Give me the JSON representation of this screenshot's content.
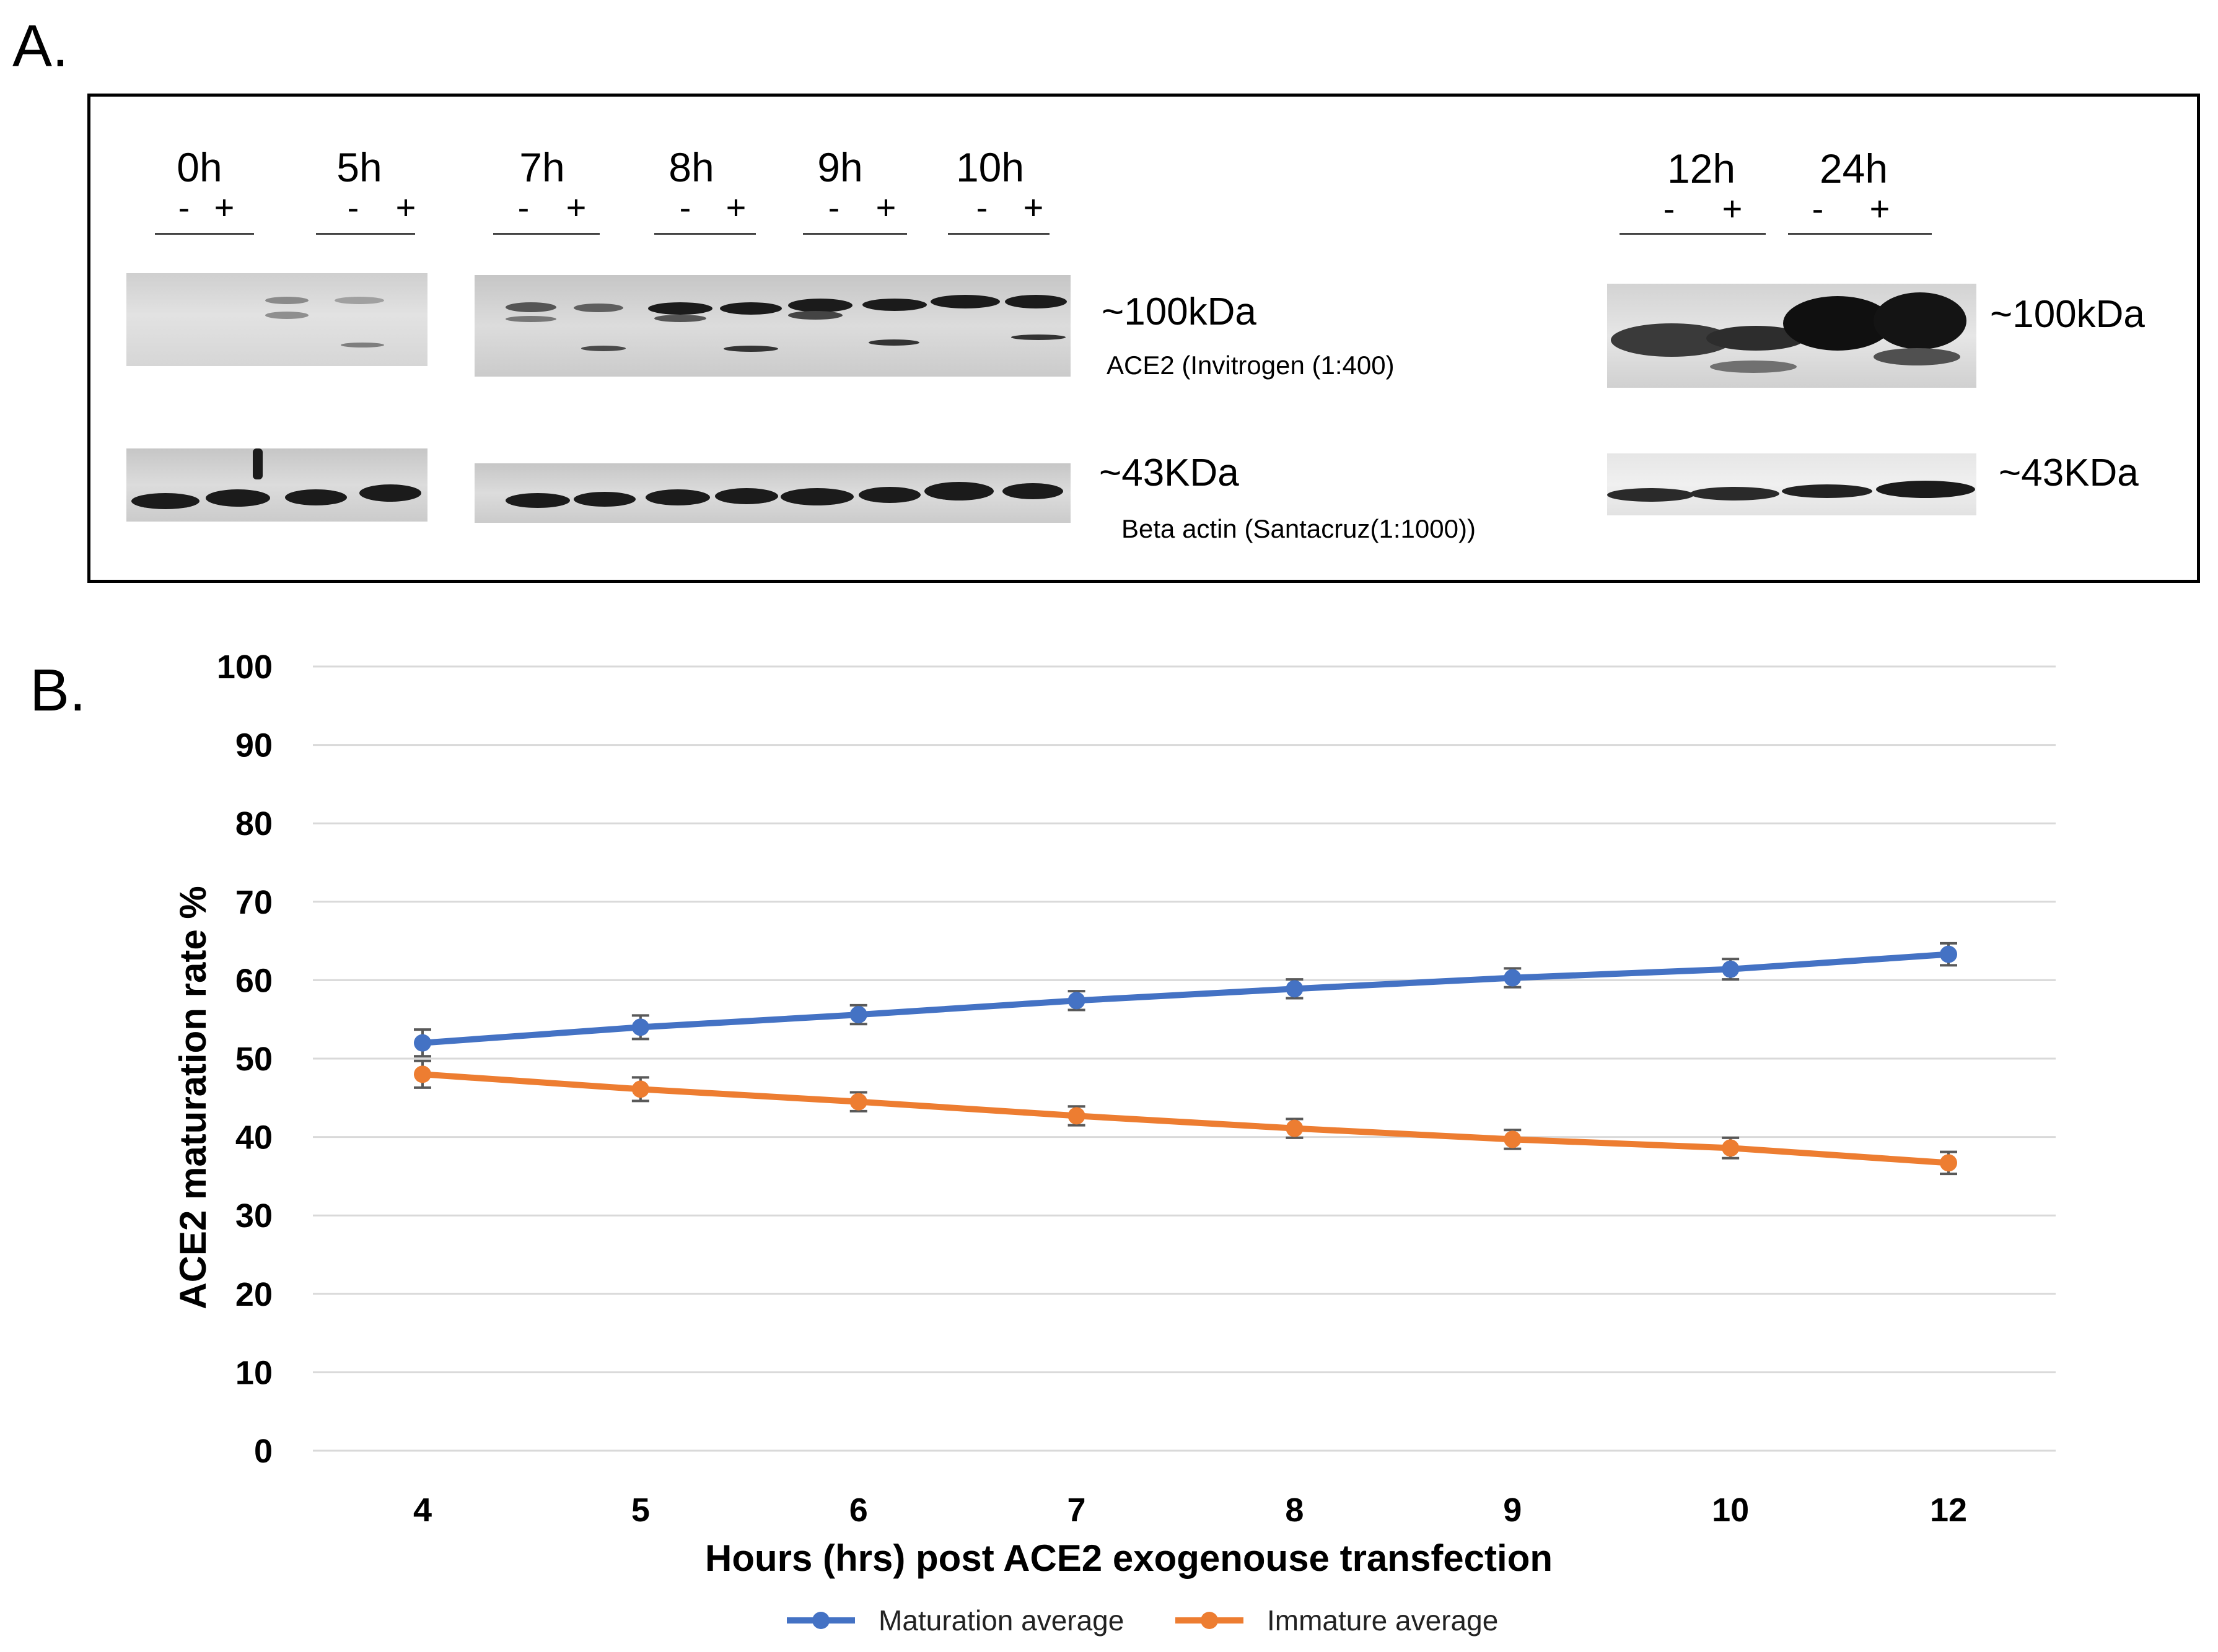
{
  "panel_a": {
    "label": "A.",
    "lane_times": [
      "0h",
      "5h",
      "7h",
      "8h",
      "9h",
      "10h",
      "12h",
      "24h"
    ],
    "minus": "-",
    "plus": "+",
    "ace2_size": "~100kDa",
    "ace2_antibody": "ACE2 (Invitrogen (1:400)",
    "actin_size": "~43KDa",
    "actin_antibody": "Beta actin (Santacruz(1:1000))"
  },
  "panel_b": {
    "label": "B."
  },
  "chart_data": {
    "type": "line",
    "title": "",
    "xlabel": "Hours (hrs) post ACE2 exogenouse transfection",
    "ylabel": "ACE2 maturation rate  %",
    "categories": [
      "4",
      "5",
      "6",
      "7",
      "8",
      "9",
      "10",
      "12"
    ],
    "ylim": [
      0,
      100
    ],
    "yticks": [
      0,
      10,
      20,
      30,
      40,
      50,
      60,
      70,
      80,
      90,
      100
    ],
    "grid": true,
    "legend_position": "bottom",
    "series": [
      {
        "name": "Maturation average",
        "color": "#4472C4",
        "values": [
          52,
          54,
          55.6,
          57.4,
          58.9,
          60.3,
          61.4,
          63.3
        ],
        "errors": [
          1.7,
          1.5,
          1.2,
          1.2,
          1.2,
          1.2,
          1.3,
          1.4
        ]
      },
      {
        "name": "Immature average",
        "color": "#ED7D31",
        "values": [
          48,
          46.1,
          44.5,
          42.7,
          41.1,
          39.7,
          38.6,
          36.7
        ],
        "errors": [
          1.7,
          1.5,
          1.2,
          1.2,
          1.2,
          1.2,
          1.3,
          1.4
        ]
      }
    ],
    "errorbar_color": "#595959"
  }
}
